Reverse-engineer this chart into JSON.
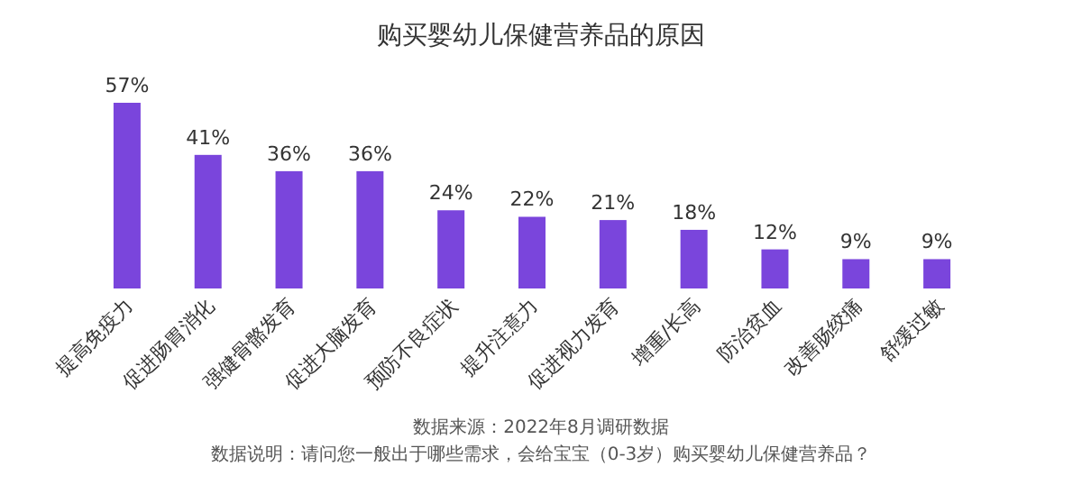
{
  "chart_data": {
    "type": "bar",
    "title": "购买婴幼儿保健营养品的原因",
    "categories": [
      "提高免疫力",
      "促进肠胃消化",
      "强健骨骼发育",
      "促进大脑发育",
      "预防不良症状",
      "提升注意力",
      "促进视力发育",
      "增重/长高",
      "防治贫血",
      "改善肠绞痛",
      "舒缓过敏"
    ],
    "values": [
      57,
      41,
      36,
      36,
      24,
      22,
      21,
      18,
      12,
      9,
      9
    ],
    "value_labels": [
      "57%",
      "41%",
      "36%",
      "36%",
      "24%",
      "22%",
      "21%",
      "18%",
      "12%",
      "9%",
      "9%"
    ],
    "color": "#7a45dc",
    "annotations": [
      "数据来源：2022年8月调研数据",
      "数据说明：请问您一般出于哪些需求，会给宝宝（0-3岁）购买婴幼儿保健营养品？"
    ]
  }
}
